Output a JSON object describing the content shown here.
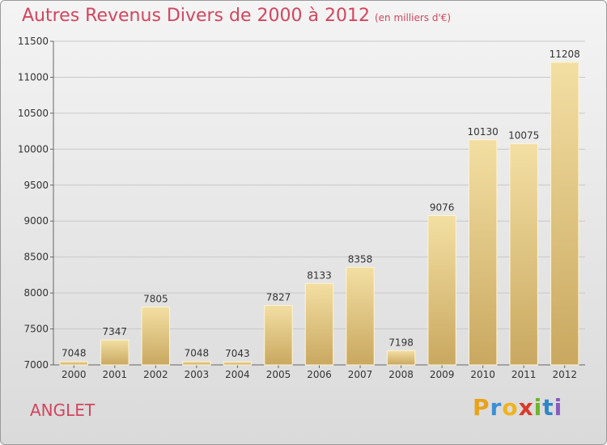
{
  "header": {
    "title": "Autres Revenus Divers de 2000 à 2012",
    "subtitle": "(en milliers d'€)"
  },
  "footer": {
    "city": "ANGLET",
    "logo_letters": [
      "P",
      "r",
      "o",
      "x",
      "i",
      "t",
      "i"
    ],
    "logo_colors": [
      "#e8a21a",
      "#3a8fd6",
      "#f0b31e",
      "#d93a2b",
      "#6cb52d",
      "#2f86c8",
      "#8a5cc2"
    ]
  },
  "colors": {
    "bar_light": "#f3dfa3",
    "bar_dark": "#c9a860",
    "title": "#d3455e",
    "grid": "#c8c8c8"
  },
  "chart_data": {
    "type": "bar",
    "categories": [
      "2000",
      "2001",
      "2002",
      "2003",
      "2004",
      "2005",
      "2006",
      "2007",
      "2008",
      "2009",
      "2010",
      "2011",
      "2012"
    ],
    "values": [
      7048,
      7347,
      7805,
      7048,
      7043,
      7827,
      8133,
      8358,
      7198,
      9076,
      10130,
      10075,
      11208
    ],
    "ylim": [
      7000,
      11500
    ],
    "yticks": [
      7000,
      7500,
      8000,
      8500,
      9000,
      9500,
      10000,
      10500,
      11000,
      11500
    ],
    "grid": true
  }
}
